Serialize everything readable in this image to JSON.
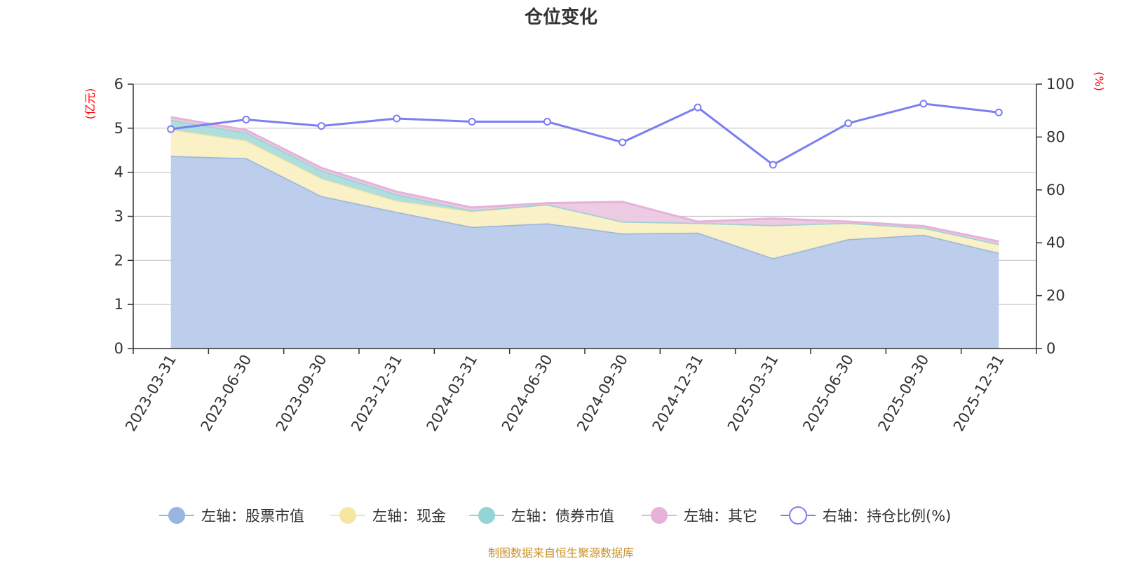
{
  "chart_data": {
    "type": "area",
    "title": "仓位变化",
    "left_axis_unit": "(亿元)",
    "right_axis_unit": "(%)",
    "categories": [
      "2023-03-31",
      "2023-06-30",
      "2023-09-30",
      "2023-12-31",
      "2024-03-31",
      "2024-06-30",
      "2024-09-30",
      "2024-12-31",
      "2025-03-31",
      "2025-06-30",
      "2025-09-30",
      "2025-12-31"
    ],
    "left_ylim": [
      0,
      6
    ],
    "left_ticks": [
      "0",
      "1",
      "2",
      "3",
      "4",
      "5",
      "6"
    ],
    "right_ylim": [
      0,
      100
    ],
    "right_ticks": [
      "0",
      "20",
      "40",
      "60",
      "80",
      "100"
    ],
    "series": [
      {
        "name": "左轴：股票市值",
        "axis": "left",
        "type": "stacked-area",
        "color": "#97b5e0",
        "fill": "#b8cbea",
        "values": [
          4.37,
          4.32,
          3.46,
          3.1,
          2.76,
          2.84,
          2.61,
          2.63,
          2.05,
          2.48,
          2.58,
          2.17
        ]
      },
      {
        "name": "左轴：现金",
        "axis": "left",
        "type": "stacked-area",
        "color": "#f5e6a3",
        "fill": "#faf0c4",
        "values": [
          0.6,
          0.4,
          0.4,
          0.25,
          0.35,
          0.43,
          0.27,
          0.22,
          0.75,
          0.37,
          0.16,
          0.2
        ]
      },
      {
        "name": "左轴：债券市值",
        "axis": "left",
        "type": "stacked-area",
        "color": "#94d4d4",
        "fill": "#acdcdc",
        "values": [
          0.22,
          0.18,
          0.18,
          0.15,
          0.02,
          0.0,
          0.0,
          0.0,
          0.0,
          0.0,
          0.0,
          0.0
        ]
      },
      {
        "name": "左轴：其它",
        "axis": "left",
        "type": "stacked-area",
        "color": "#e6b2d9",
        "fill": "#ebc8e1",
        "values": [
          0.06,
          0.06,
          0.06,
          0.06,
          0.07,
          0.03,
          0.45,
          0.03,
          0.15,
          0.03,
          0.04,
          0.06
        ]
      },
      {
        "name": "右轴：持仓比例(%)",
        "axis": "right",
        "type": "line",
        "color": "#7b7ff0",
        "values": [
          83.0,
          86.6,
          84.2,
          87.0,
          85.8,
          85.8,
          78.0,
          91.2,
          69.5,
          85.2,
          92.6,
          89.3
        ]
      }
    ],
    "legend_position": "bottom",
    "grid": true
  },
  "footer": {
    "source": "制图数据来自恒生聚源数据库"
  }
}
